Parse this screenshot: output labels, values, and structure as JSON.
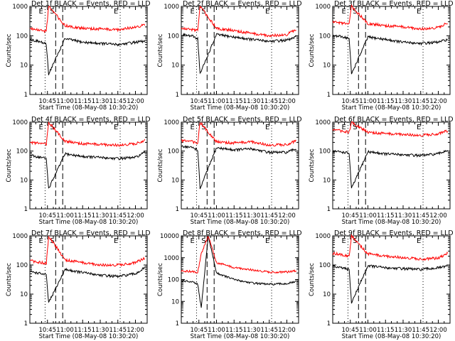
{
  "colors": {
    "events": "#000000",
    "lld": "#ff0000",
    "background": "#ffffff",
    "axes": "#000000"
  },
  "common": {
    "xlabel": "Start Time (08-May-08 10:30:20)",
    "ylabel": "Counts/sec",
    "xticks": [
      "10:45",
      "11:00",
      "11:15",
      "11:30",
      "11:45",
      "12:00"
    ],
    "yscale": "log"
  },
  "chart_data": [
    {
      "type": "line",
      "title": "Det 1f BLACK = Events, RED = LLD",
      "xlabel": "Start Time (08-May-08 10:30:20)",
      "ylabel": "Counts/sec",
      "x_range": [
        "10:30",
        "12:10"
      ],
      "ylim": [
        1,
        1000
      ],
      "y_ticks": [
        "1",
        "10",
        "100",
        "1000"
      ],
      "x_ticks": [
        "10:45",
        "11:00",
        "11:15",
        "11:30",
        "11:45",
        "12:00"
      ],
      "markers": {
        "E_start": "10:43",
        "S": "10:52",
        "dashed": "10:58",
        "E_end": "11:47"
      },
      "series": [
        {
          "name": "Events",
          "color": "#000000",
          "x": [
            "10:30",
            "10:40",
            "10:44",
            "10:46",
            "11:00",
            "11:15",
            "11:30",
            "11:45",
            "12:00",
            "12:08"
          ],
          "y": [
            75,
            60,
            50,
            5,
            80,
            60,
            55,
            50,
            60,
            65
          ]
        },
        {
          "name": "LLD",
          "color": "#ff0000",
          "x": [
            "10:30",
            "10:40",
            "10:44",
            "10:46",
            "11:00",
            "11:15",
            "11:30",
            "11:45",
            "12:00",
            "12:08"
          ],
          "y": [
            180,
            150,
            140,
            1000,
            220,
            180,
            170,
            160,
            200,
            230
          ]
        }
      ]
    },
    {
      "type": "line",
      "title": "Det 2f BLACK = Events, RED = LLD",
      "xlabel": "Start Time (08-May-08 10:30:20)",
      "ylabel": "Counts/sec",
      "x_range": [
        "10:30",
        "12:10"
      ],
      "ylim": [
        1,
        1000
      ],
      "y_ticks": [
        "1",
        "10",
        "100",
        "1000"
      ],
      "x_ticks": [
        "10:45",
        "11:00",
        "11:15",
        "11:30",
        "11:45",
        "12:00"
      ],
      "markers": {
        "E_start": "10:43",
        "S": "10:52",
        "dashed": "10:58",
        "E_end": "11:47"
      },
      "series": [
        {
          "name": "Events",
          "color": "#000000",
          "x": [
            "10:30",
            "10:40",
            "10:44",
            "10:46",
            "11:00",
            "11:15",
            "11:30",
            "11:45",
            "12:00",
            "12:08"
          ],
          "y": [
            110,
            95,
            80,
            5,
            110,
            90,
            75,
            65,
            70,
            90
          ]
        },
        {
          "name": "LLD",
          "color": "#ff0000",
          "x": [
            "10:30",
            "10:40",
            "10:44",
            "10:46",
            "11:00",
            "11:15",
            "11:30",
            "11:45",
            "12:00",
            "12:08"
          ],
          "y": [
            180,
            160,
            150,
            1000,
            180,
            150,
            120,
            100,
            110,
            170
          ]
        }
      ]
    },
    {
      "type": "line",
      "title": "Det 3f BLACK = Events, RED = LLD",
      "xlabel": "Start Time (08-May-08 10:30:20)",
      "ylabel": "Counts/sec",
      "x_range": [
        "10:30",
        "12:10"
      ],
      "ylim": [
        1,
        1000
      ],
      "y_ticks": [
        "1",
        "10",
        "100",
        "1000"
      ],
      "x_ticks": [
        "10:45",
        "11:00",
        "11:15",
        "11:30",
        "11:45",
        "12:00"
      ],
      "markers": {
        "E_start": "10:43",
        "S": "10:52",
        "dashed": "10:58",
        "E_end": "11:47"
      },
      "series": [
        {
          "name": "Events",
          "color": "#000000",
          "x": [
            "10:30",
            "10:40",
            "10:44",
            "10:46",
            "11:00",
            "11:15",
            "11:30",
            "11:45",
            "12:00",
            "12:08"
          ],
          "y": [
            100,
            90,
            80,
            5,
            90,
            75,
            60,
            55,
            60,
            75
          ]
        },
        {
          "name": "LLD",
          "color": "#ff0000",
          "x": [
            "10:30",
            "10:40",
            "10:44",
            "10:46",
            "11:00",
            "11:15",
            "11:30",
            "11:45",
            "12:00",
            "12:08"
          ],
          "y": [
            300,
            260,
            250,
            1000,
            260,
            220,
            200,
            170,
            190,
            280
          ]
        }
      ]
    },
    {
      "type": "line",
      "title": "Det 4f BLACK = Events, RED = LLD",
      "xlabel": "Start Time (08-May-08 10:30:20)",
      "ylabel": "Counts/sec",
      "x_range": [
        "10:30",
        "12:10"
      ],
      "ylim": [
        1,
        1000
      ],
      "y_ticks": [
        "1",
        "10",
        "100",
        "1000"
      ],
      "x_ticks": [
        "10:45",
        "11:00",
        "11:15",
        "11:30",
        "11:45",
        "12:00"
      ],
      "markers": {
        "E_start": "10:43",
        "S": "10:52",
        "dashed": "10:58",
        "E_end": "11:47"
      },
      "series": [
        {
          "name": "Events",
          "color": "#000000",
          "x": [
            "10:30",
            "10:40",
            "10:44",
            "10:46",
            "11:00",
            "11:15",
            "11:30",
            "11:45",
            "12:00",
            "12:08"
          ],
          "y": [
            70,
            60,
            55,
            5,
            80,
            65,
            60,
            55,
            60,
            90
          ]
        },
        {
          "name": "LLD",
          "color": "#ff0000",
          "x": [
            "10:30",
            "10:40",
            "10:44",
            "10:46",
            "11:00",
            "11:15",
            "11:30",
            "11:45",
            "12:00",
            "12:08"
          ],
          "y": [
            200,
            180,
            170,
            1000,
            220,
            180,
            170,
            160,
            180,
            240
          ]
        }
      ]
    },
    {
      "type": "line",
      "title": "Det 5f BLACK = Events, RED = LLD",
      "xlabel": "Start Time (08-May-08 10:30:20)",
      "ylabel": "Counts/sec",
      "x_range": [
        "10:30",
        "12:10"
      ],
      "ylim": [
        1,
        1000
      ],
      "y_ticks": [
        "1",
        "10",
        "100",
        "1000"
      ],
      "x_ticks": [
        "10:45",
        "11:00",
        "11:15",
        "11:30",
        "11:45",
        "12:00"
      ],
      "markers": {
        "E_start": "10:43",
        "S": "10:52",
        "dashed": "10:58",
        "E_end": "11:47"
      },
      "series": [
        {
          "name": "Events",
          "color": "#000000",
          "x": [
            "10:30",
            "10:40",
            "10:44",
            "10:46",
            "11:00",
            "11:15",
            "11:30",
            "11:45",
            "12:00",
            "12:08"
          ],
          "y": [
            150,
            130,
            110,
            5,
            130,
            110,
            120,
            90,
            90,
            120
          ]
        },
        {
          "name": "LLD",
          "color": "#ff0000",
          "x": [
            "10:30",
            "10:40",
            "10:44",
            "10:46",
            "11:00",
            "11:15",
            "11:30",
            "11:45",
            "12:00",
            "12:08"
          ],
          "y": [
            230,
            210,
            190,
            1000,
            210,
            190,
            210,
            160,
            170,
            230
          ]
        }
      ]
    },
    {
      "type": "line",
      "title": "Det 6f BLACK = Events, RED = LLD",
      "xlabel": "Start Time (08-May-08 10:30:20)",
      "ylabel": "Counts/sec",
      "x_range": [
        "10:30",
        "12:10"
      ],
      "ylim": [
        1,
        1000
      ],
      "y_ticks": [
        "1",
        "10",
        "100",
        "1000"
      ],
      "x_ticks": [
        "10:45",
        "11:00",
        "11:15",
        "11:30",
        "11:45",
        "12:00"
      ],
      "markers": {
        "E_start": "10:43",
        "S": "10:52",
        "dashed": "10:58",
        "E_end": "11:47"
      },
      "series": [
        {
          "name": "Events",
          "color": "#000000",
          "x": [
            "10:30",
            "10:40",
            "10:44",
            "10:46",
            "11:00",
            "11:15",
            "11:30",
            "11:45",
            "12:00",
            "12:08"
          ],
          "y": [
            100,
            90,
            85,
            5,
            95,
            80,
            75,
            70,
            80,
            110
          ]
        },
        {
          "name": "LLD",
          "color": "#ff0000",
          "x": [
            "10:30",
            "10:40",
            "10:44",
            "10:46",
            "11:00",
            "11:15",
            "11:30",
            "11:45",
            "12:00",
            "12:08"
          ],
          "y": [
            550,
            480,
            450,
            1000,
            450,
            400,
            380,
            350,
            400,
            500
          ]
        }
      ]
    },
    {
      "type": "line",
      "title": "Det 7f BLACK = Events, RED = LLD",
      "xlabel": "Start Time (08-May-08 10:30:20)",
      "ylabel": "Counts/sec",
      "x_range": [
        "10:30",
        "12:10"
      ],
      "ylim": [
        1,
        1000
      ],
      "y_ticks": [
        "1",
        "10",
        "100",
        "1000"
      ],
      "x_ticks": [
        "10:45",
        "11:00",
        "11:15",
        "11:30",
        "11:45",
        "12:00"
      ],
      "markers": {
        "E_start": "10:43",
        "S": "10:52",
        "dashed": "10:58",
        "E_end": "11:47"
      },
      "series": [
        {
          "name": "Events",
          "color": "#000000",
          "x": [
            "10:30",
            "10:40",
            "10:44",
            "10:46",
            "11:00",
            "11:15",
            "11:30",
            "11:45",
            "12:00",
            "12:08"
          ],
          "y": [
            60,
            50,
            45,
            5,
            70,
            55,
            45,
            40,
            50,
            80
          ]
        },
        {
          "name": "LLD",
          "color": "#ff0000",
          "x": [
            "10:30",
            "10:40",
            "10:44",
            "10:46",
            "11:00",
            "11:15",
            "11:30",
            "11:45",
            "12:00",
            "12:08"
          ],
          "y": [
            140,
            120,
            110,
            1000,
            150,
            120,
            100,
            100,
            120,
            170
          ]
        }
      ]
    },
    {
      "type": "line",
      "title": "Det 8f BLACK = Events, RED = LLD",
      "xlabel": "Start Time (08-May-08 10:30:20)",
      "ylabel": "Counts/sec",
      "x_range": [
        "10:30",
        "12:10"
      ],
      "ylim": [
        1,
        10000
      ],
      "y_ticks": [
        "1",
        "10",
        "100",
        "1000",
        "10000"
      ],
      "x_ticks": [
        "10:45",
        "11:00",
        "11:15",
        "11:30",
        "11:45",
        "12:00"
      ],
      "markers": {
        "E_start": "10:43",
        "S": "10:52",
        "dashed": "10:58",
        "E_end": "11:47"
      },
      "series": [
        {
          "name": "Events",
          "color": "#000000",
          "x": [
            "10:30",
            "10:40",
            "10:44",
            "10:47",
            "10:53",
            "11:00",
            "11:15",
            "11:30",
            "11:45",
            "12:00",
            "12:08"
          ],
          "y": [
            90,
            75,
            60,
            5,
            10000,
            200,
            100,
            70,
            60,
            65,
            80
          ]
        },
        {
          "name": "LLD",
          "color": "#ff0000",
          "x": [
            "10:30",
            "10:40",
            "10:44",
            "10:47",
            "10:53",
            "11:00",
            "11:15",
            "11:30",
            "11:45",
            "12:00",
            "12:08"
          ],
          "y": [
            250,
            230,
            220,
            1500,
            10000,
            600,
            350,
            280,
            220,
            220,
            250
          ]
        }
      ]
    },
    {
      "type": "line",
      "title": "Det 9f BLACK = Events, RED = LLD",
      "xlabel": "Start Time (08-May-08 10:30:20)",
      "ylabel": "Counts/sec",
      "x_range": [
        "10:30",
        "12:10"
      ],
      "ylim": [
        1,
        1000
      ],
      "y_ticks": [
        "1",
        "10",
        "100",
        "1000"
      ],
      "x_ticks": [
        "10:45",
        "11:00",
        "11:15",
        "11:30",
        "11:45",
        "12:00"
      ],
      "markers": {
        "E_start": "10:43",
        "S": "10:52",
        "dashed": "10:58",
        "E_end": "11:47"
      },
      "series": [
        {
          "name": "Events",
          "color": "#000000",
          "x": [
            "10:30",
            "10:40",
            "10:44",
            "10:46",
            "11:00",
            "11:15",
            "11:30",
            "11:45",
            "12:00",
            "12:08"
          ],
          "y": [
            90,
            75,
            70,
            5,
            95,
            80,
            75,
            70,
            80,
            90
          ]
        },
        {
          "name": "LLD",
          "color": "#ff0000",
          "x": [
            "10:30",
            "10:40",
            "10:44",
            "10:46",
            "11:00",
            "11:15",
            "11:30",
            "11:45",
            "12:00",
            "12:08"
          ],
          "y": [
            250,
            220,
            200,
            1000,
            240,
            200,
            180,
            160,
            170,
            250
          ]
        }
      ]
    }
  ]
}
